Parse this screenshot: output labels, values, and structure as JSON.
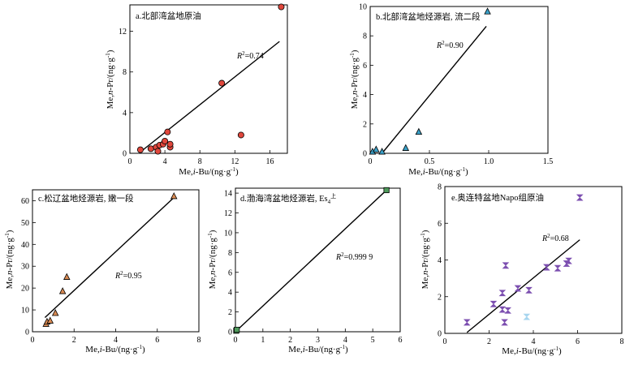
{
  "figure": {
    "panels": [
      {
        "id": "a",
        "title": "a.北部湾盆地原油",
        "r2_prefix": "R",
        "r2_sup": "2",
        "r2_value": "=0.74",
        "xlabel": {
          "pre": "Me,",
          "ital": "i",
          "post": "-Bu/(ng·g",
          "sup": "-1",
          "end": ")"
        },
        "ylabel": {
          "pre": "Me,",
          "ital": "n",
          "mid": "-Pr/(ng·g",
          "sup": "-1",
          "end": ")"
        },
        "xticks": [
          "0",
          "4",
          "8",
          "12",
          "16"
        ],
        "yticks": [
          "0",
          "4",
          "8",
          "12"
        ]
      },
      {
        "id": "b",
        "title": "b.北部湾盆地烃源岩, 流二段",
        "r2_prefix": "R",
        "r2_sup": "2",
        "r2_value": "=0.90",
        "xlabel": {
          "pre": "Me,",
          "ital": "i",
          "post": "-Bu/(ng·g",
          "sup": "-1",
          "end": ")"
        },
        "ylabel": {
          "pre": "Me,",
          "ital": "n",
          "mid": "-Pr/(ng·g",
          "sup": "-1",
          "end": ")"
        },
        "xticks": [
          "0",
          "0.5",
          "1.0",
          "1.5"
        ],
        "yticks": [
          "0",
          "2",
          "4",
          "6",
          "8",
          "10"
        ]
      },
      {
        "id": "c",
        "title": "c.松辽盆地烃源岩, 嫩一段",
        "r2_prefix": "R",
        "r2_sup": "2",
        "r2_value": "=0.95",
        "xlabel": {
          "pre": "Me,",
          "ital": "i",
          "post": "-Bu/(ng·g",
          "sup": "-1",
          "end": ")"
        },
        "ylabel": {
          "pre": "Me,",
          "ital": "n",
          "mid": "-Pr/(ng·g",
          "sup": "-1",
          "end": ")"
        },
        "xticks": [
          "0",
          "2",
          "4",
          "6",
          "8"
        ],
        "yticks": [
          "0",
          "10",
          "20",
          "30",
          "40",
          "50",
          "60"
        ]
      },
      {
        "id": "d",
        "title": "d.渤海湾盆地烃源岩, Es",
        "title_sub": "4",
        "title_sup": "上",
        "r2_prefix": "R",
        "r2_sup": "2",
        "r2_value": "=0.999 9",
        "xlabel": {
          "pre": "Me,",
          "ital": "i",
          "post": "-Bu/(ng·g",
          "sup": "-1",
          "end": ")"
        },
        "ylabel": {
          "pre": "Me,",
          "ital": "n",
          "mid": "-Pr/(ng·g",
          "sup": "-1",
          "end": ")"
        },
        "xticks": [
          "0",
          "1",
          "2",
          "3",
          "4",
          "5",
          "6"
        ],
        "yticks": [
          "0",
          "2",
          "4",
          "6",
          "8",
          "10",
          "12",
          "14"
        ]
      },
      {
        "id": "e",
        "title": "e.奥连特盆地Napo组原油",
        "r2_prefix": "R",
        "r2_sup": "2",
        "r2_value": "=0.68",
        "xlabel": {
          "pre": "Me,",
          "ital": "i",
          "post": "-Bu/(ng·g",
          "sup": "-1",
          "end": ")"
        },
        "ylabel": {
          "pre": "Me,",
          "ital": "n",
          "mid": "-Pr/(ng·g",
          "sup": "-1",
          "end": ")"
        },
        "xticks": [
          "0",
          "2",
          "4",
          "6",
          "8"
        ],
        "yticks": [
          "0",
          "2",
          "4",
          "6",
          "8"
        ]
      }
    ]
  },
  "chart_data": [
    {
      "type": "scatter",
      "title": "a.北部湾盆地原油",
      "xlabel": "Me,i-Bu/(ng·g-1)",
      "ylabel": "Me,n-Pr/(ng·g-1)",
      "xlim": [
        0,
        18
      ],
      "ylim": [
        0,
        14.6
      ],
      "marker": "circle",
      "color": "#e0473c",
      "points": [
        [
          1.2,
          0.35
        ],
        [
          2.4,
          0.45
        ],
        [
          3.0,
          0.6
        ],
        [
          3.2,
          0.2
        ],
        [
          3.4,
          0.8
        ],
        [
          3.8,
          0.9
        ],
        [
          4.0,
          1.2
        ],
        [
          4.3,
          2.1
        ],
        [
          4.6,
          0.6
        ],
        [
          4.6,
          0.9
        ],
        [
          10.5,
          6.9
        ],
        [
          12.7,
          1.8
        ],
        [
          17.3,
          14.4
        ]
      ],
      "fit_line": [
        [
          1.3,
          0.2
        ],
        [
          17.1,
          11.0
        ]
      ],
      "r2": "0.74"
    },
    {
      "type": "scatter",
      "title": "b.北部湾盆地烃源岩, 流二段",
      "xlabel": "Me,i-Bu/(ng·g-1)",
      "ylabel": "Me,n-Pr/(ng·g-1)",
      "xlim": [
        0,
        1.5
      ],
      "ylim": [
        0,
        10
      ],
      "marker": "triangle",
      "color": "#3aa1c9",
      "points": [
        [
          0.02,
          0.1
        ],
        [
          0.05,
          0.25
        ],
        [
          0.1,
          0.1
        ],
        [
          0.3,
          0.35
        ],
        [
          0.41,
          1.45
        ],
        [
          0.99,
          9.65
        ]
      ],
      "fit_line": [
        [
          0.1,
          0.0
        ],
        [
          0.98,
          8.65
        ]
      ],
      "r2": "0.90"
    },
    {
      "type": "scatter",
      "title": "c.松辽盆地烃源岩, 嫩一段",
      "xlabel": "Me,i-Bu/(ng·g-1)",
      "ylabel": "Me,n-Pr/(ng·g-1)",
      "xlim": [
        0,
        8
      ],
      "ylim": [
        0,
        65
      ],
      "marker": "triangle",
      "color": "#d98a52",
      "points": [
        [
          0.65,
          3.5
        ],
        [
          0.7,
          4.5
        ],
        [
          0.85,
          5.0
        ],
        [
          1.1,
          8.5
        ],
        [
          1.45,
          18.5
        ],
        [
          1.65,
          25.0
        ],
        [
          6.8,
          62.0
        ]
      ],
      "fit_line": [
        [
          0.6,
          6.5
        ],
        [
          6.75,
          61.0
        ]
      ],
      "r2": "0.95"
    },
    {
      "type": "scatter",
      "title": "d.渤海湾盆地烃源岩, Es4上",
      "xlabel": "Me,i-Bu/(ng·g-1)",
      "ylabel": "Me,n-Pr/(ng·g-1)",
      "xlim": [
        0,
        6
      ],
      "ylim": [
        0,
        14.5
      ],
      "marker": "square",
      "color": "#4e9a5b",
      "points": [
        [
          0.03,
          0.1
        ],
        [
          0.05,
          0.2
        ],
        [
          5.5,
          14.3
        ]
      ],
      "fit_line": [
        [
          0.0,
          0.0
        ],
        [
          5.5,
          14.3
        ]
      ],
      "r2": "0.999 9"
    },
    {
      "type": "scatter",
      "title": "e.奥连特盆地Napo组原油",
      "xlabel": "Me,i-Bu/(ng·g-1)",
      "ylabel": "Me,n-Pr/(ng·g-1)",
      "xlim": [
        0,
        8
      ],
      "ylim": [
        0,
        8
      ],
      "marker": "hourglass",
      "color": "#7c4fb0",
      "highlight_color": "#a8d6ef",
      "points": [
        [
          1.0,
          0.6
        ],
        [
          2.2,
          1.6
        ],
        [
          2.6,
          2.2
        ],
        [
          2.6,
          1.3
        ],
        [
          2.7,
          0.6
        ],
        [
          2.75,
          3.7
        ],
        [
          2.85,
          1.25
        ],
        [
          3.3,
          2.45
        ],
        [
          3.8,
          2.35
        ],
        [
          4.6,
          3.6
        ],
        [
          5.1,
          3.55
        ],
        [
          5.5,
          3.8
        ],
        [
          5.6,
          3.95
        ],
        [
          6.1,
          7.4
        ]
      ],
      "highlight_points": [
        [
          3.7,
          0.9
        ]
      ],
      "fit_line": [
        [
          1.0,
          0.05
        ],
        [
          6.1,
          5.1
        ]
      ],
      "r2": "0.68"
    }
  ]
}
